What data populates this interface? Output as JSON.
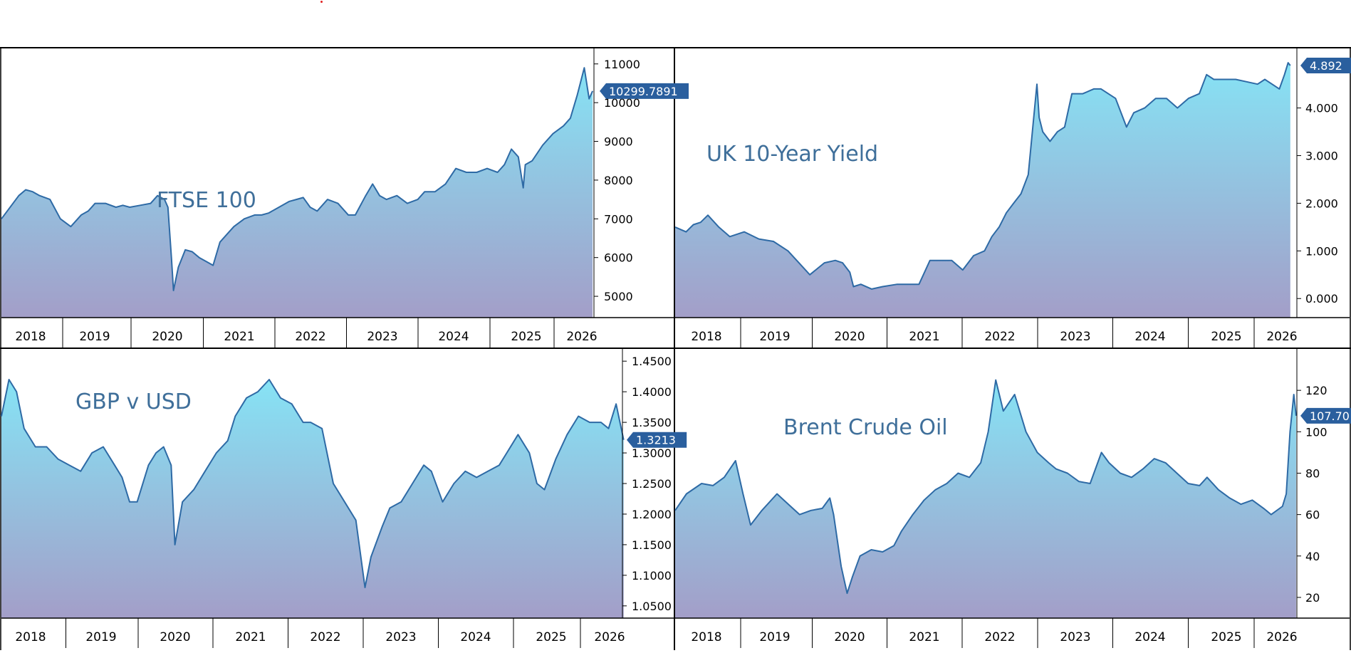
{
  "colors": {
    "line": "#2e6aa5",
    "fill_top": "#86e3f5",
    "fill_bottom": "#a39ec8",
    "title_text": "#3f6f9a",
    "badge_bg": "#2a5f9e",
    "badge_text": "#ffffff",
    "frame": "#000000"
  },
  "chart_data": [
    {
      "type": "area",
      "title": "FTSE 100",
      "x_tick_labels": [
        "2018",
        "2019",
        "2020",
        "2021",
        "2022",
        "2023",
        "2024",
        "2025",
        "2026"
      ],
      "y_tick_labels": [
        "5000",
        "6000",
        "7000",
        "8000",
        "9000",
        "10000",
        "11000"
      ],
      "ylim": [
        4450,
        11400
      ],
      "last_value_label": "10299.7891",
      "last_value": 10299.7891,
      "x": [
        2017.75,
        2018.0,
        2018.1,
        2018.2,
        2018.3,
        2018.45,
        2018.6,
        2018.75,
        2018.9,
        2019.0,
        2019.1,
        2019.25,
        2019.4,
        2019.5,
        2019.6,
        2019.75,
        2019.9,
        2020.0,
        2020.1,
        2020.15,
        2020.2,
        2020.23,
        2020.3,
        2020.4,
        2020.5,
        2020.6,
        2020.7,
        2020.8,
        2020.9,
        2021.0,
        2021.1,
        2021.25,
        2021.4,
        2021.5,
        2021.6,
        2021.75,
        2021.9,
        2022.0,
        2022.1,
        2022.2,
        2022.3,
        2022.45,
        2022.6,
        2022.75,
        2022.85,
        2023.0,
        2023.1,
        2023.2,
        2023.3,
        2023.45,
        2023.6,
        2023.75,
        2023.85,
        2024.0,
        2024.15,
        2024.3,
        2024.45,
        2024.6,
        2024.75,
        2024.9,
        2025.0,
        2025.1,
        2025.2,
        2025.27,
        2025.3,
        2025.4,
        2025.55,
        2025.7,
        2025.85,
        2025.95,
        2026.05,
        2026.15,
        2026.22,
        2026.27
      ],
      "y": [
        7000,
        7600,
        7750,
        7700,
        7600,
        7500,
        7000,
        6800,
        7100,
        7200,
        7400,
        7400,
        7300,
        7350,
        7300,
        7350,
        7400,
        7600,
        7500,
        7300,
        6000,
        5150,
        5750,
        6200,
        6150,
        6000,
        5900,
        5800,
        6400,
        6600,
        6800,
        7000,
        7100,
        7100,
        7150,
        7300,
        7450,
        7500,
        7550,
        7300,
        7200,
        7500,
        7400,
        7100,
        7100,
        7600,
        7900,
        7600,
        7500,
        7600,
        7400,
        7500,
        7700,
        7700,
        7900,
        8300,
        8200,
        8200,
        8300,
        8200,
        8400,
        8800,
        8600,
        7800,
        8400,
        8500,
        8900,
        9200,
        9400,
        9600,
        10200,
        10900,
        10100,
        10299.79
      ]
    },
    {
      "type": "area",
      "title": "UK 10-Year Yield",
      "x_tick_labels": [
        "2018",
        "2019",
        "2020",
        "2021",
        "2022",
        "2023",
        "2024",
        "2025",
        "2026"
      ],
      "y_tick_labels": [
        "0.000",
        "1.000",
        "2.000",
        "3.000",
        "4.000"
      ],
      "ylim": [
        -0.4,
        5.25
      ],
      "last_value_label": "4.892",
      "last_value": 4.892,
      "x": [
        2017.75,
        2017.9,
        2018.0,
        2018.1,
        2018.2,
        2018.35,
        2018.5,
        2018.7,
        2018.9,
        2019.1,
        2019.3,
        2019.45,
        2019.6,
        2019.8,
        2019.95,
        2020.05,
        2020.15,
        2020.2,
        2020.3,
        2020.45,
        2020.6,
        2020.8,
        2020.95,
        2021.1,
        2021.25,
        2021.4,
        2021.55,
        2021.7,
        2021.85,
        2022.0,
        2022.1,
        2022.2,
        2022.3,
        2022.4,
        2022.5,
        2022.6,
        2022.72,
        2022.75,
        2022.8,
        2022.9,
        2023.0,
        2023.1,
        2023.2,
        2023.35,
        2023.5,
        2023.6,
        2023.7,
        2023.8,
        2023.95,
        2024.05,
        2024.2,
        2024.35,
        2024.5,
        2024.65,
        2024.8,
        2024.95,
        2025.05,
        2025.15,
        2025.3,
        2025.45,
        2025.6,
        2025.75,
        2025.85,
        2025.95,
        2026.05,
        2026.12,
        2026.17,
        2026.2
      ],
      "y": [
        1.5,
        1.4,
        1.55,
        1.6,
        1.75,
        1.5,
        1.3,
        1.4,
        1.25,
        1.2,
        1.0,
        0.75,
        0.5,
        0.75,
        0.8,
        0.75,
        0.55,
        0.25,
        0.3,
        0.2,
        0.25,
        0.3,
        0.3,
        0.3,
        0.8,
        0.8,
        0.8,
        0.6,
        0.9,
        1.0,
        1.3,
        1.5,
        1.8,
        2.0,
        2.2,
        2.6,
        4.5,
        3.8,
        3.5,
        3.3,
        3.5,
        3.6,
        4.3,
        4.3,
        4.4,
        4.4,
        4.3,
        4.2,
        3.6,
        3.9,
        4.0,
        4.2,
        4.2,
        4.0,
        4.2,
        4.3,
        4.7,
        4.6,
        4.6,
        4.6,
        4.55,
        4.5,
        4.6,
        4.5,
        4.4,
        4.7,
        4.95,
        4.892
      ]
    },
    {
      "type": "area",
      "title": "GBP v USD",
      "x_tick_labels": [
        "2018",
        "2019",
        "2020",
        "2021",
        "2022",
        "2023",
        "2024",
        "2025",
        "2026"
      ],
      "y_tick_labels": [
        "1.0500",
        "1.1000",
        "1.1500",
        "1.2000",
        "1.2500",
        "1.3000",
        "1.3500",
        "1.4000",
        "1.4500"
      ],
      "ylim": [
        1.03,
        1.47
      ],
      "last_value_label": "1.3213",
      "last_value": 1.3213,
      "x": [
        2017.9,
        2018.0,
        2018.1,
        2018.2,
        2018.35,
        2018.5,
        2018.65,
        2018.8,
        2018.95,
        2019.1,
        2019.25,
        2019.4,
        2019.5,
        2019.6,
        2019.7,
        2019.85,
        2019.95,
        2020.05,
        2020.15,
        2020.2,
        2020.3,
        2020.45,
        2020.6,
        2020.75,
        2020.9,
        2021.0,
        2021.15,
        2021.3,
        2021.45,
        2021.6,
        2021.75,
        2021.9,
        2022.0,
        2022.15,
        2022.3,
        2022.45,
        2022.6,
        2022.72,
        2022.8,
        2022.95,
        2023.05,
        2023.2,
        2023.35,
        2023.5,
        2023.6,
        2023.75,
        2023.9,
        2024.05,
        2024.2,
        2024.35,
        2024.5,
        2024.6,
        2024.75,
        2024.9,
        2025.0,
        2025.1,
        2025.25,
        2025.4,
        2025.55,
        2025.7,
        2025.85,
        2025.95,
        2026.05,
        2026.15
      ],
      "y": [
        1.36,
        1.42,
        1.4,
        1.34,
        1.31,
        1.31,
        1.29,
        1.28,
        1.27,
        1.3,
        1.31,
        1.28,
        1.26,
        1.22,
        1.22,
        1.28,
        1.3,
        1.31,
        1.28,
        1.15,
        1.22,
        1.24,
        1.27,
        1.3,
        1.32,
        1.36,
        1.39,
        1.4,
        1.42,
        1.39,
        1.38,
        1.35,
        1.35,
        1.34,
        1.25,
        1.22,
        1.19,
        1.08,
        1.13,
        1.18,
        1.21,
        1.22,
        1.25,
        1.28,
        1.27,
        1.22,
        1.25,
        1.27,
        1.26,
        1.27,
        1.28,
        1.3,
        1.33,
        1.3,
        1.25,
        1.24,
        1.29,
        1.33,
        1.36,
        1.35,
        1.35,
        1.34,
        1.38,
        1.3213
      ]
    },
    {
      "type": "area",
      "title": "Brent Crude Oil",
      "x_tick_labels": [
        "2018",
        "2019",
        "2020",
        "2021",
        "2022",
        "2023",
        "2024",
        "2025",
        "2026"
      ],
      "y_tick_labels": [
        "20",
        "40",
        "60",
        "80",
        "100",
        "120"
      ],
      "ylim": [
        10,
        140
      ],
      "last_value_label": "107.70",
      "last_value": 107.7,
      "x": [
        2017.95,
        2018.1,
        2018.3,
        2018.45,
        2018.6,
        2018.75,
        2018.85,
        2018.95,
        2019.1,
        2019.3,
        2019.45,
        2019.6,
        2019.75,
        2019.9,
        2020.0,
        2020.05,
        2020.15,
        2020.23,
        2020.3,
        2020.4,
        2020.55,
        2020.7,
        2020.85,
        2020.95,
        2021.1,
        2021.25,
        2021.4,
        2021.55,
        2021.7,
        2021.85,
        2022.0,
        2022.1,
        2022.2,
        2022.3,
        2022.45,
        2022.6,
        2022.75,
        2022.9,
        2023.0,
        2023.15,
        2023.3,
        2023.45,
        2023.6,
        2023.7,
        2023.85,
        2024.0,
        2024.15,
        2024.3,
        2024.45,
        2024.6,
        2024.75,
        2024.9,
        2025.0,
        2025.15,
        2025.3,
        2025.45,
        2025.6,
        2025.75,
        2025.85,
        2026.0,
        2026.05,
        2026.1,
        2026.15,
        2026.18
      ],
      "y": [
        62,
        70,
        75,
        74,
        78,
        86,
        70,
        55,
        62,
        70,
        65,
        60,
        62,
        63,
        68,
        60,
        35,
        22,
        30,
        40,
        43,
        42,
        45,
        52,
        60,
        67,
        72,
        75,
        80,
        78,
        85,
        100,
        125,
        110,
        118,
        100,
        90,
        85,
        82,
        80,
        76,
        75,
        90,
        85,
        80,
        78,
        82,
        87,
        85,
        80,
        75,
        74,
        78,
        72,
        68,
        65,
        67,
        63,
        60,
        64,
        70,
        100,
        118,
        107.7
      ]
    }
  ]
}
